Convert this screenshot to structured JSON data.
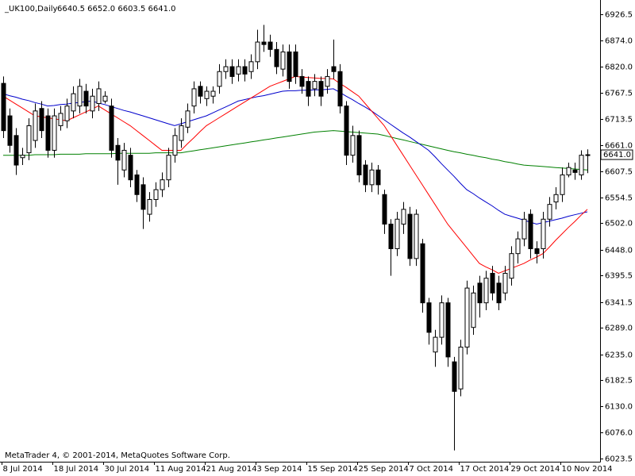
{
  "chart_data": {
    "type": "candlestick",
    "title": "_UK100,Daily",
    "subtitle": "6640.5 6652.0 6603.5 6641.0",
    "footer": "MetaTrader 4, © 2001-2014, MetaQuotes Software Corp.",
    "last_price_label": "6641.0",
    "categories": [
      "8 Jul 2014",
      null,
      null,
      null,
      null,
      null,
      null,
      null,
      "18 Jul 2014",
      null,
      null,
      null,
      null,
      null,
      null,
      null,
      "30 Jul 2014",
      null,
      null,
      null,
      null,
      null,
      null,
      null,
      "11 Aug 2014",
      null,
      null,
      null,
      null,
      null,
      null,
      null,
      "21 Aug 2014",
      null,
      null,
      null,
      null,
      null,
      null,
      null,
      "3 Sep 2014",
      null,
      null,
      null,
      null,
      null,
      null,
      null,
      "15 Sep 2014",
      null,
      null,
      null,
      null,
      null,
      null,
      null,
      "25 Sep 2014",
      null,
      null,
      null,
      null,
      null,
      null,
      null,
      "7 Oct 2014",
      null,
      null,
      null,
      null,
      null,
      null,
      null,
      "17 Oct 2014",
      null,
      null,
      null,
      null,
      null,
      null,
      null,
      "29 Oct 2014",
      null,
      null,
      null,
      null,
      null,
      null,
      null,
      "10 Nov 2014",
      null,
      null,
      null,
      null
    ],
    "open": [
      6786,
      6720,
      6680,
      6635,
      6645,
      6670,
      6735,
      6720,
      6650,
      6700,
      6710,
      6730,
      6740,
      6770,
      6730,
      6745,
      6750,
      6740,
      6660,
      6610,
      6640,
      6600,
      6580,
      6520,
      6550,
      6570,
      6590,
      6640,
      6670,
      6697,
      6740,
      6780,
      6755,
      6760,
      6780,
      6810,
      6820,
      6805,
      6820,
      6810,
      6830,
      6870,
      6870,
      6855,
      6815,
      6850,
      6850,
      6800,
      6790,
      6775,
      6790,
      6780,
      6820,
      6810,
      6740,
      6640,
      6680,
      6620,
      6580,
      6610,
      6560,
      6500,
      6450,
      6500,
      6520,
      6430,
      6460,
      6340,
      6240,
      6270,
      6340,
      6220,
      6165,
      6250,
      6290,
      6380,
      6340,
      6400,
      6380,
      6360,
      6390,
      6440,
      6470,
      6520,
      6450,
      6450,
      6510,
      6545,
      6560,
      6600,
      6610,
      6600,
      6640.5
    ],
    "high": [
      6800,
      6735,
      6695,
      6655,
      6715,
      6745,
      6750,
      6735,
      6735,
      6740,
      6755,
      6780,
      6795,
      6785,
      6775,
      6790,
      6770,
      6755,
      6675,
      6665,
      6655,
      6610,
      6595,
      6565,
      6585,
      6605,
      6655,
      6695,
      6715,
      6745,
      6790,
      6790,
      6780,
      6780,
      6825,
      6835,
      6835,
      6835,
      6835,
      6845,
      6895,
      6905,
      6885,
      6870,
      6865,
      6865,
      6865,
      6815,
      6800,
      6805,
      6800,
      6815,
      6875,
      6825,
      6750,
      6700,
      6690,
      6630,
      6625,
      6620,
      6570,
      6510,
      6525,
      6545,
      6535,
      6530,
      6470,
      6350,
      6285,
      6355,
      6350,
      6230,
      6265,
      6385,
      6375,
      6395,
      6405,
      6415,
      6395,
      6415,
      6455,
      6485,
      6525,
      6530,
      6465,
      6525,
      6555,
      6575,
      6615,
      6625,
      6625,
      6650,
      6652
    ],
    "low": [
      6675,
      6645,
      6600,
      6620,
      6630,
      6655,
      6675,
      6635,
      6635,
      6690,
      6695,
      6715,
      6725,
      6725,
      6715,
      6730,
      6745,
      6635,
      6580,
      6595,
      6575,
      6545,
      6490,
      6505,
      6535,
      6555,
      6575,
      6625,
      6655,
      6685,
      6725,
      6745,
      6740,
      6745,
      6765,
      6795,
      6785,
      6790,
      6790,
      6795,
      6815,
      6850,
      6840,
      6805,
      6800,
      6775,
      6785,
      6765,
      6740,
      6760,
      6740,
      6765,
      6795,
      6725,
      6620,
      6625,
      6585,
      6565,
      6565,
      6560,
      6480,
      6395,
      6435,
      6480,
      6415,
      6415,
      6320,
      6255,
      6210,
      6255,
      6210,
      6040,
      6150,
      6235,
      6275,
      6310,
      6325,
      6345,
      6325,
      6345,
      6375,
      6420,
      6455,
      6430,
      6420,
      6430,
      6495,
      6530,
      6545,
      6595,
      6590,
      6590,
      6603.5
    ],
    "close": [
      6690,
      6660,
      6620,
      6640,
      6700,
      6730,
      6690,
      6650,
      6720,
      6725,
      6740,
      6765,
      6780,
      6740,
      6760,
      6775,
      6760,
      6650,
      6630,
      6650,
      6590,
      6560,
      6530,
      6550,
      6570,
      6590,
      6640,
      6680,
      6700,
      6730,
      6775,
      6760,
      6770,
      6770,
      6810,
      6820,
      6800,
      6820,
      6805,
      6830,
      6870,
      6865,
      6855,
      6820,
      6850,
      6790,
      6800,
      6780,
      6760,
      6790,
      6760,
      6800,
      6810,
      6740,
      6640,
      6680,
      6600,
      6580,
      6610,
      6580,
      6500,
      6450,
      6510,
      6530,
      6430,
      6520,
      6340,
      6280,
      6270,
      6340,
      6230,
      6160,
      6250,
      6370,
      6360,
      6340,
      6390,
      6360,
      6340,
      6400,
      6440,
      6470,
      6510,
      6450,
      6440,
      6510,
      6540,
      6560,
      6600,
      6615,
      6605,
      6640,
      6641
    ],
    "up_color": "#ffffff",
    "down_color": "#000000",
    "series": [
      {
        "type": "line",
        "color": "#008000",
        "values": [
          6640,
          6640,
          6640,
          6640,
          6640,
          6641,
          6641,
          6641,
          6641,
          6642,
          6642,
          6642,
          6642,
          6643,
          6643,
          6643,
          6643,
          6643,
          6644,
          6644,
          6644,
          6644,
          6644,
          6644,
          6645,
          6645,
          6645,
          6645,
          6645,
          6647,
          6649,
          6651,
          6653,
          6655,
          6657,
          6659,
          6661,
          6663,
          6665,
          6667,
          6669,
          6671,
          6673,
          6675,
          6677,
          6679,
          6681,
          6683,
          6685,
          6687,
          6688,
          6689,
          6690,
          6689,
          6688,
          6687,
          6686,
          6685,
          6684,
          6683,
          6680,
          6677,
          6674,
          6671,
          6668,
          6665,
          6662,
          6659,
          6656,
          6653,
          6650,
          6647,
          6645,
          6642,
          6640,
          6637,
          6635,
          6632,
          6630,
          6627,
          6625,
          6622,
          6620,
          6619,
          6618,
          6617,
          6616,
          6615,
          6614,
          6613,
          6612,
          6611,
          6610
        ]
      },
      {
        "type": "line",
        "color": "#0000cc",
        "values": [
          6765,
          6761,
          6758,
          6754,
          6751,
          6747,
          6744,
          6740,
          6741,
          6743,
          6744,
          6746,
          6747,
          6749,
          6750,
          6746,
          6743,
          6739,
          6735,
          6731,
          6728,
          6724,
          6720,
          6716,
          6712,
          6708,
          6704,
          6700,
          6704,
          6708,
          6712,
          6716,
          6720,
          6726,
          6732,
          6738,
          6744,
          6750,
          6753,
          6756,
          6759,
          6761,
          6764,
          6767,
          6770,
          6771,
          6771,
          6772,
          6772,
          6773,
          6773,
          6774,
          6775,
          6768,
          6760,
          6753,
          6745,
          6738,
          6730,
          6721,
          6712,
          6703,
          6694,
          6685,
          6677,
          6668,
          6659,
          6650,
          6637,
          6623,
          6610,
          6597,
          6583,
          6570,
          6562,
          6553,
          6545,
          6537,
          6528,
          6520,
          6516,
          6512,
          6508,
          6504,
          6500,
          6503,
          6506,
          6509,
          6512,
          6516,
          6519,
          6522,
          6525
        ]
      },
      {
        "type": "line",
        "color": "#ff0000",
        "values": [
          6760,
          6752,
          6744,
          6736,
          6728,
          6720,
          6718,
          6716,
          6714,
          6712,
          6710,
          6716,
          6722,
          6728,
          6734,
          6740,
          6732,
          6724,
          6716,
          6708,
          6700,
          6690,
          6680,
          6670,
          6660,
          6650,
          6650,
          6650,
          6650,
          6663,
          6675,
          6688,
          6700,
          6708,
          6716,
          6724,
          6732,
          6740,
          6748,
          6756,
          6764,
          6772,
          6780,
          6785,
          6790,
          6795,
          6800,
          6799,
          6798,
          6797,
          6796,
          6796,
          6795,
          6786,
          6778,
          6769,
          6760,
          6745,
          6730,
          6715,
          6700,
          6680,
          6660,
          6640,
          6620,
          6600,
          6580,
          6560,
          6540,
          6520,
          6500,
          6484,
          6468,
          6452,
          6436,
          6420,
          6413,
          6407,
          6400,
          6405,
          6410,
          6415,
          6420,
          6427,
          6433,
          6440,
          6453,
          6467,
          6480,
          6493,
          6505,
          6518,
          6530
        ]
      }
    ],
    "ylim": [
      6017,
      6955.5
    ],
    "yticks": [
      6926.5,
      {
        "value": 6874,
        "label": "6874.0"
      },
      {
        "value": 6820,
        "label": "6820.0"
      },
      6767.5,
      6713.5,
      {
        "value": 6661,
        "label": "6661.0"
      },
      6607.5,
      6554.5,
      {
        "value": 6502,
        "label": "6502.0"
      },
      {
        "value": 6448,
        "label": "6448.0"
      },
      6395.5,
      6341.5,
      {
        "value": 6289,
        "label": "6289.0"
      },
      {
        "value": 6235,
        "label": "6235.0"
      },
      6182.5,
      {
        "value": 6130,
        "label": "6130.0"
      },
      {
        "value": 6076,
        "label": "6076.0"
      },
      6023.5
    ]
  }
}
